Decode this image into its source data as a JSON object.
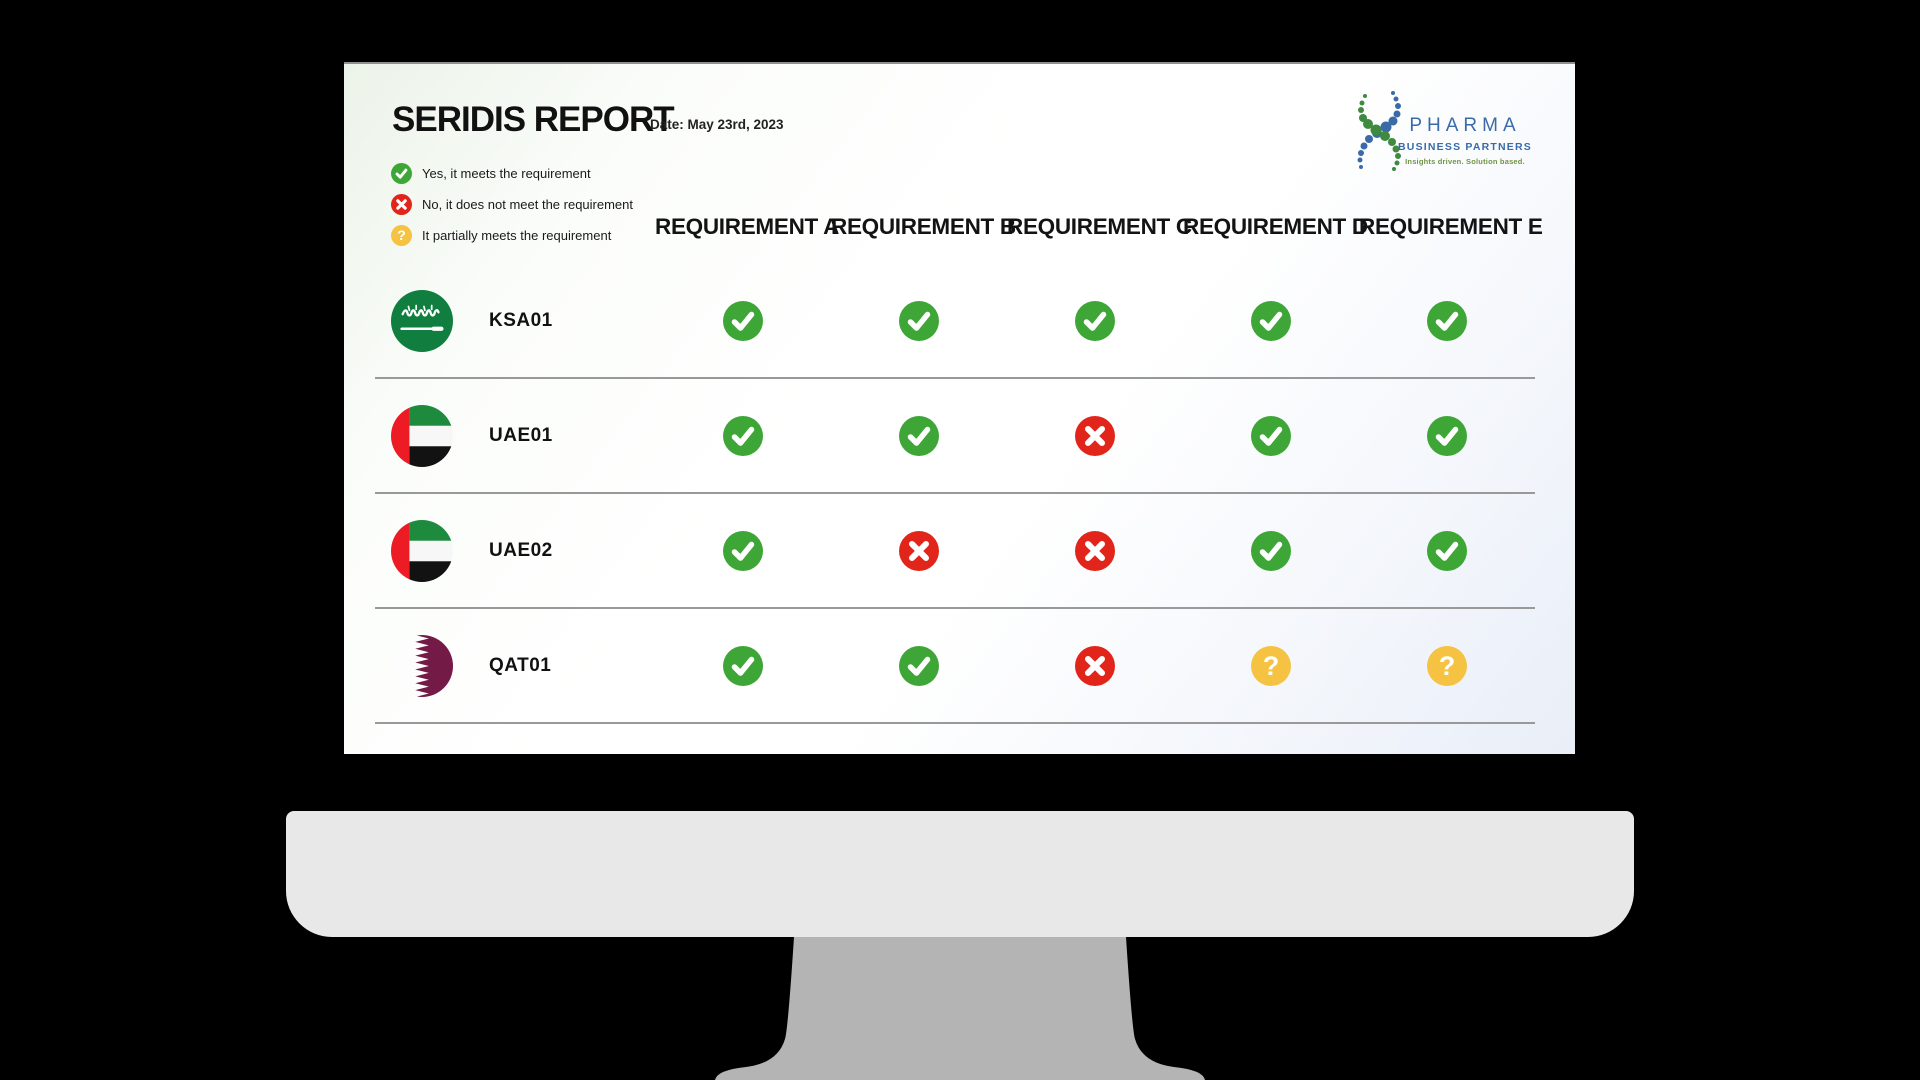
{
  "report": {
    "title": "SERIDIS REPORT",
    "date": "Date: May 23rd, 2023"
  },
  "legend": {
    "items": [
      {
        "status": "yes",
        "label": "Yes, it meets the requirement"
      },
      {
        "status": "no",
        "label": "No, it does not meet the requirement"
      },
      {
        "status": "partial",
        "label": "It partially meets the requirement"
      }
    ]
  },
  "logo": {
    "name": "PHARMA",
    "subname": "BUSINESS PARTNERS",
    "tagline": "Insights driven. Solution based."
  },
  "table": {
    "columns": [
      "REQUIREMENT A",
      "REQUIREMENT B",
      "REQUIREMENT C",
      "REQUIREMENT D",
      "REQUIREMENT E"
    ],
    "rows": [
      {
        "id": "KSA01",
        "flag": "ksa",
        "statuses": [
          "yes",
          "yes",
          "yes",
          "yes",
          "yes"
        ]
      },
      {
        "id": "UAE01",
        "flag": "uae",
        "statuses": [
          "yes",
          "yes",
          "no",
          "yes",
          "yes"
        ]
      },
      {
        "id": "UAE02",
        "flag": "uae",
        "statuses": [
          "yes",
          "no",
          "no",
          "yes",
          "yes"
        ]
      },
      {
        "id": "QAT01",
        "flag": "qat",
        "statuses": [
          "yes",
          "yes",
          "no",
          "partial",
          "partial"
        ]
      }
    ]
  },
  "colors": {
    "yes": "#3EA636",
    "no": "#E1251B",
    "partial": "#F5C242",
    "logo_blue": "#3A6BA8",
    "logo_green": "#3E8A3E",
    "tagline_green": "#6F9444",
    "ksa_green": "#0F7E3E",
    "uae_red": "#ED1C24",
    "uae_green": "#1E8A3E",
    "qat_maroon": "#741A47"
  }
}
